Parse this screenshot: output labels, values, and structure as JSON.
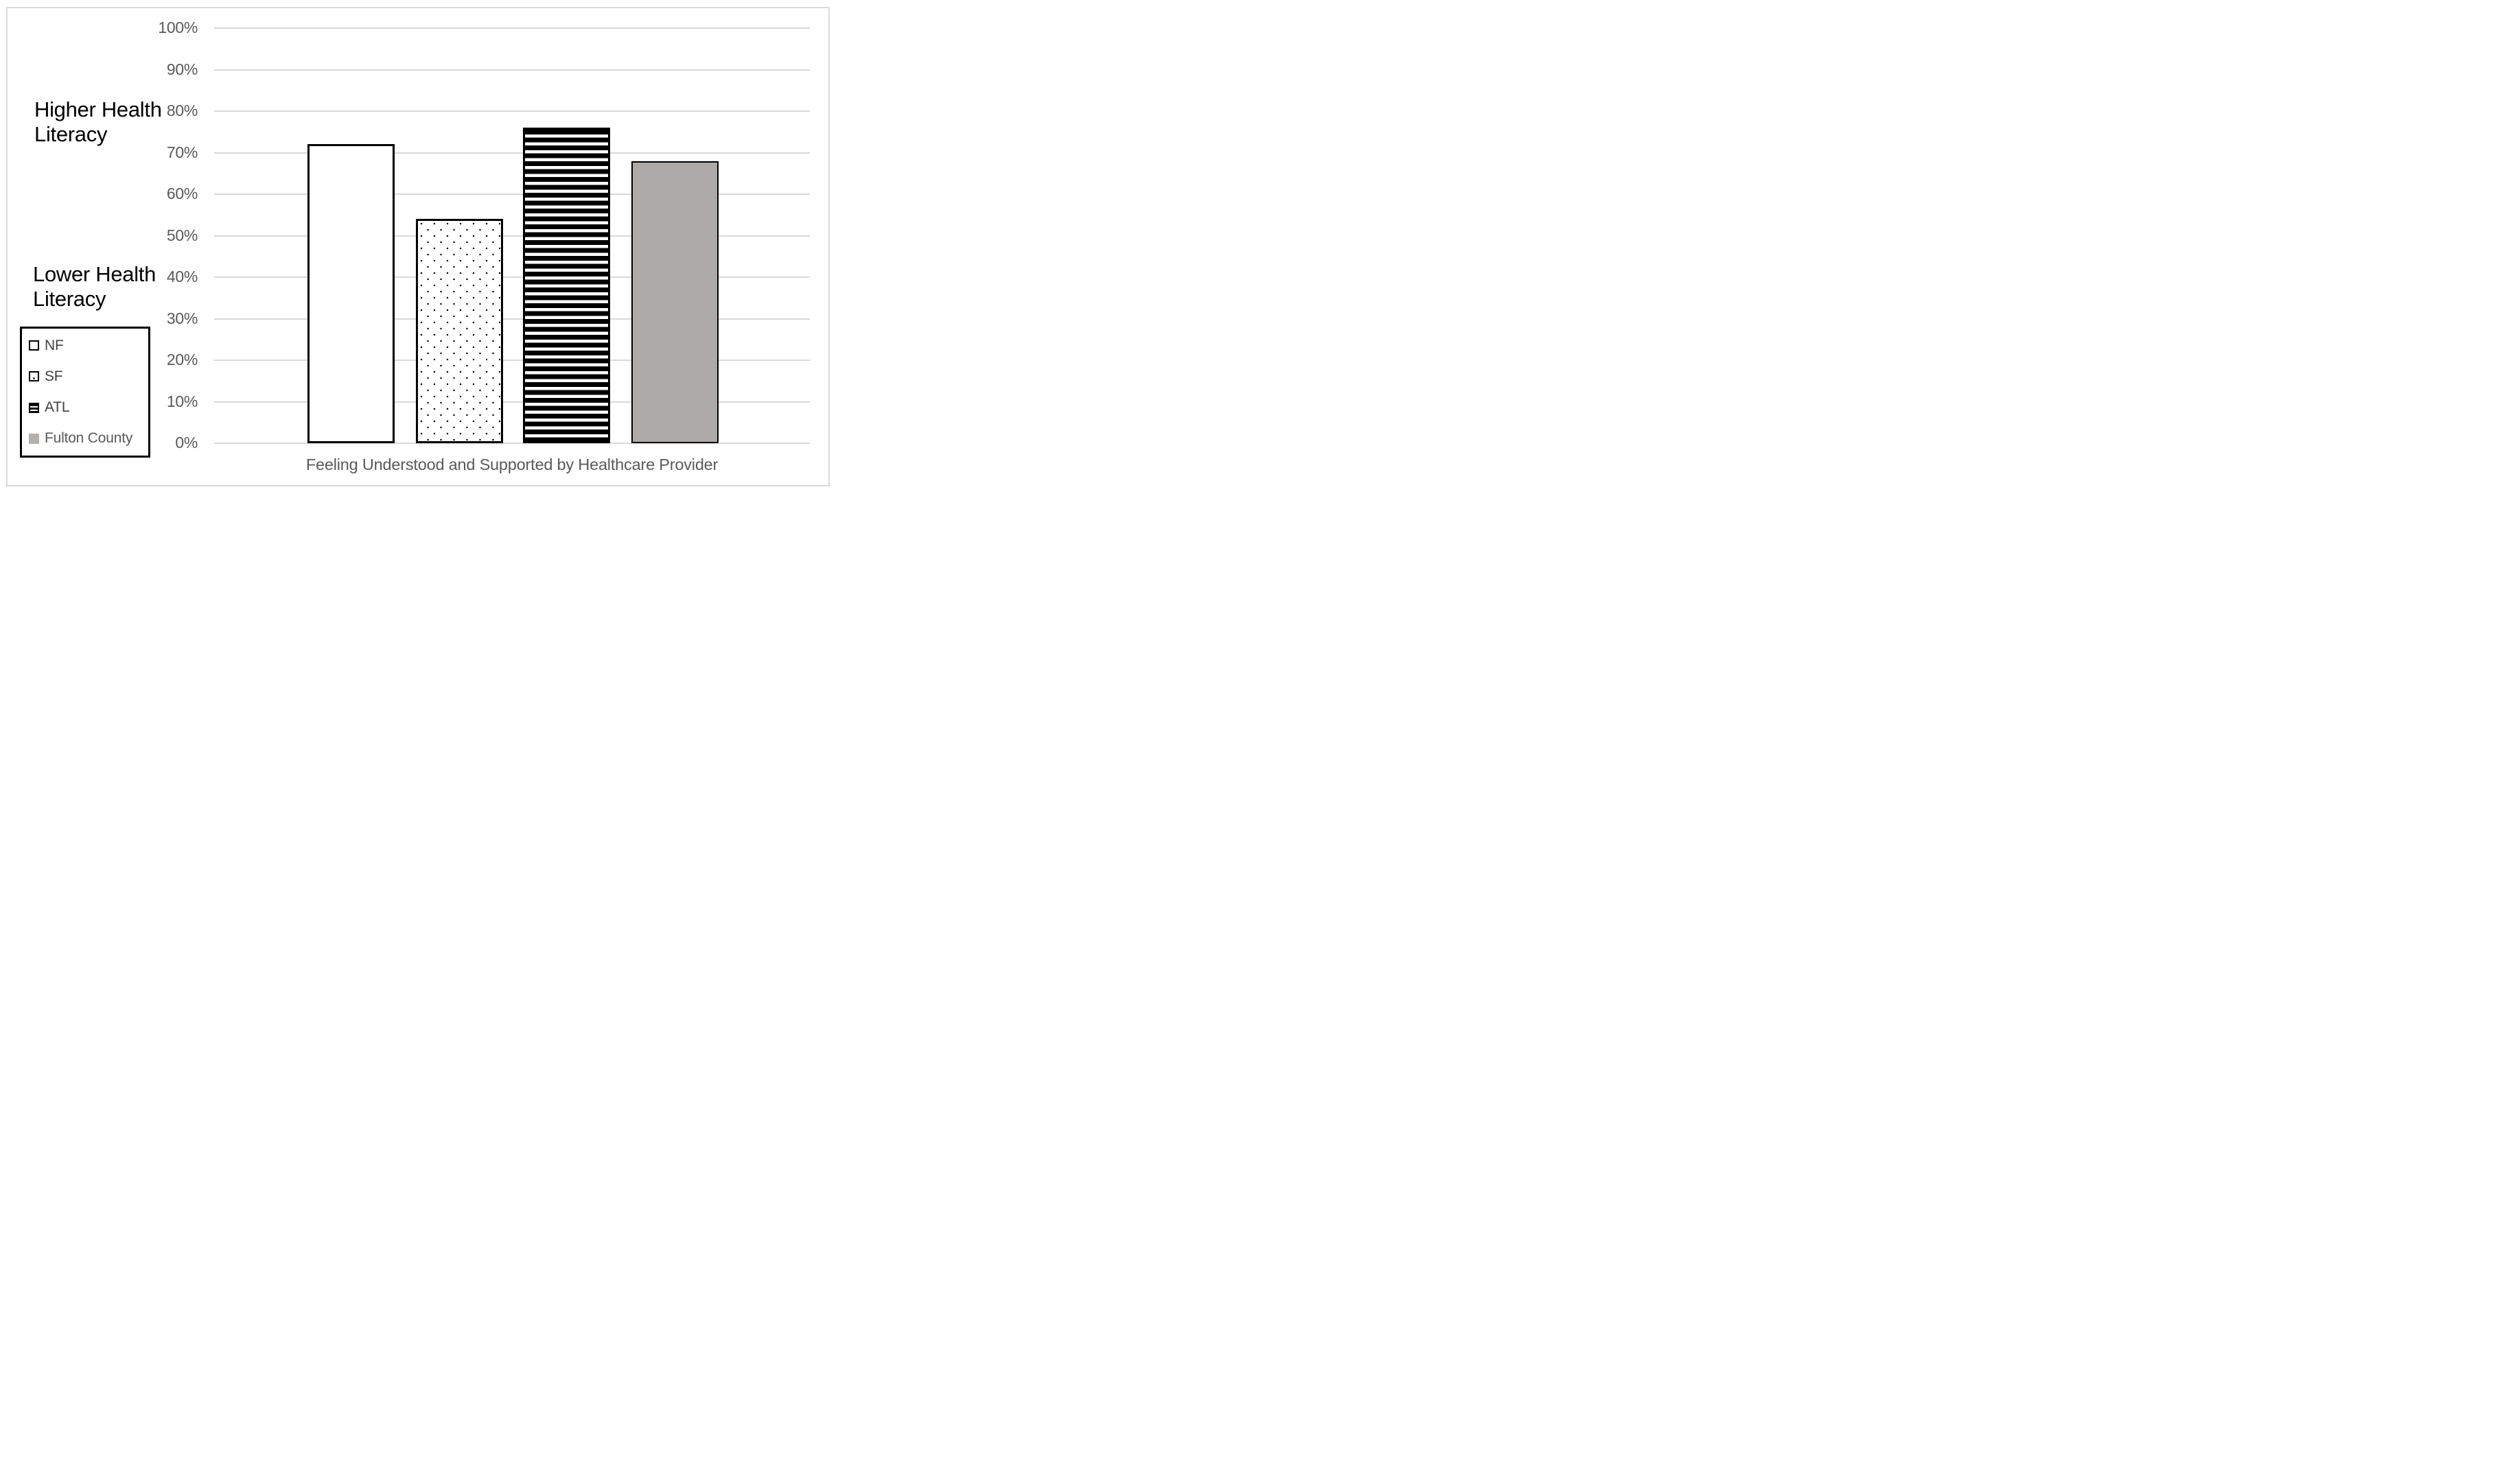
{
  "chart_data": {
    "type": "bar",
    "title": "",
    "xlabel": "Feeling Understood and Supported by Healthcare Provider",
    "ylabel": "",
    "ylim": [
      0,
      100
    ],
    "y_tick_step": 10,
    "y_ticks": [
      "100%",
      "90%",
      "80%",
      "70%",
      "60%",
      "50%",
      "40%",
      "30%",
      "20%",
      "10%",
      "0%"
    ],
    "grid": "horizontal",
    "legend_position": "bottom-left-box",
    "categories": [
      "Feeling Understood and Supported by Healthcare Provider"
    ],
    "series": [
      {
        "name": "NF",
        "value": 72,
        "pattern": "plain",
        "fill": "#FFFFFF",
        "outline": "#000000",
        "label_color": "#3F3F3F"
      },
      {
        "name": "SF",
        "value": 54,
        "pattern": "dots",
        "fill": "#FFFFFF",
        "outline": "#000000",
        "label_color": "#3F3F3F"
      },
      {
        "name": "ATL",
        "value": 76,
        "pattern": "stripes",
        "fill": "#000000",
        "outline": "#000000",
        "label_color": "#3F3F3F"
      },
      {
        "name": "Fulton County",
        "value": 68,
        "pattern": "solid",
        "fill": "#ADAAA8",
        "outline": "#000000",
        "label_color": "#595959"
      }
    ],
    "annotations": [
      {
        "text": "Higher Health Literacy",
        "position": "upper-left"
      },
      {
        "text": "Lower Health Literacy",
        "position": "mid-left"
      }
    ]
  },
  "annotations": {
    "upper": "Higher Health Literacy",
    "lower": "Lower Health Literacy"
  },
  "colors": {
    "gridline": "#D9D9D9",
    "frame_border": "#D9D9D9",
    "tick_label": "#595959",
    "axis_title": "#595959",
    "annotation_text": "#000000",
    "fulton_bar": "#ADAAA8"
  }
}
